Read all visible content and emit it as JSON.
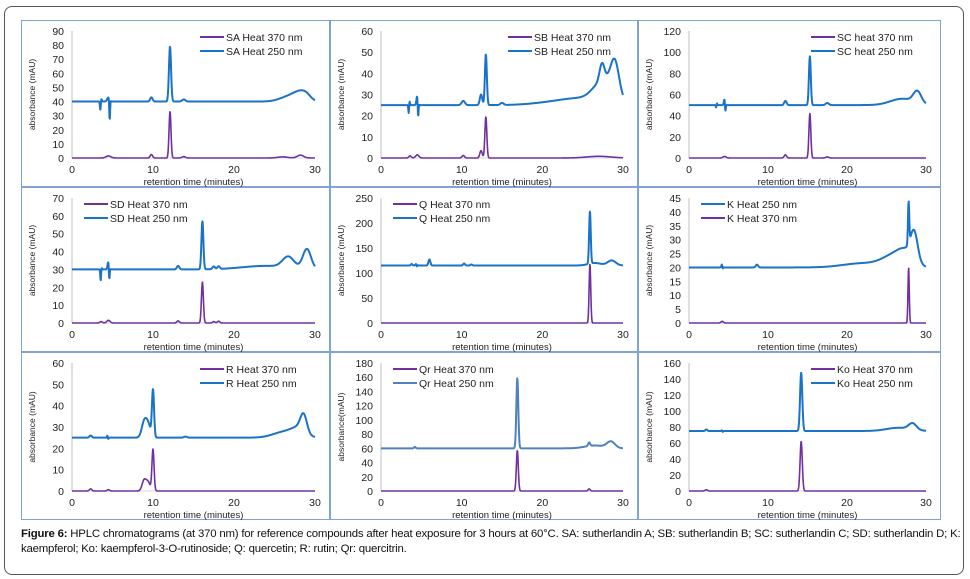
{
  "caption": {
    "label": "Figure 6:",
    "text": " HPLC chromatograms (at 370 nm) for reference compounds after heat exposure for 3 hours at 60°C. SA: sutherlandin A; SB: sutherlandin B; SC: sutherlandin C; SD: sutherlandin D; K: kaempferol; Ko: kaempferol-3-O-rutinoside; Q: quercetin; R: rutin; Qr: quercitrin."
  },
  "colors": {
    "nm370": "#7030a0",
    "nm250": "#1a73c8",
    "nm250_qr": "#4f81bd",
    "axis": "#bfbfbf",
    "text": "#222222",
    "border": "#7fa3d3"
  },
  "chart_data": [
    {
      "id": "SA",
      "type": "line",
      "xlabel": "retention time  (minutes)",
      "ylabel": "absorbance (mAU)",
      "xlim": [
        0,
        30
      ],
      "ylim": [
        0,
        90
      ],
      "xticks": [
        0,
        10,
        20,
        30
      ],
      "yticks": [
        0,
        10,
        20,
        30,
        40,
        50,
        60,
        70,
        80,
        90
      ],
      "legend_position": "top-right",
      "grid": false,
      "series": [
        {
          "name": "SA Heat 370 nm",
          "color_key": "nm370",
          "baseline": 0,
          "peaks": [
            [
              4.5,
              1.5,
              0.3
            ],
            [
              9.8,
              2.5,
              0.15
            ],
            [
              12.1,
              33,
              0.12
            ],
            [
              13.8,
              1,
              0.2
            ],
            [
              26,
              0.8,
              0.6
            ],
            [
              28.2,
              2,
              0.4
            ]
          ]
        },
        {
          "name": "SA Heat 250 nm",
          "color_key": "nm250",
          "baseline": 40,
          "peaks": [
            [
              3.6,
              2,
              0.08
            ],
            [
              3.5,
              -7,
              0.05
            ],
            [
              4.5,
              3,
              0.15
            ],
            [
              4.65,
              -15,
              0.05
            ],
            [
              9.8,
              3,
              0.15
            ],
            [
              12.1,
              39,
              0.13
            ],
            [
              13.8,
              1.5,
              0.2
            ],
            [
              27,
              4,
              1.2
            ],
            [
              28.3,
              5,
              0.8
            ],
            [
              29,
              2,
              0.5
            ]
          ]
        }
      ]
    },
    {
      "id": "SB",
      "type": "line",
      "xlabel": "retention time  (minutes)",
      "ylabel": "absorbance (mAU)",
      "xlim": [
        0,
        30
      ],
      "ylim": [
        0,
        60
      ],
      "xticks": [
        0,
        10,
        20,
        30
      ],
      "yticks": [
        0,
        10,
        20,
        30,
        40,
        50,
        60
      ],
      "legend_position": "top-right",
      "grid": false,
      "series": [
        {
          "name": "SB Heat 370 nm",
          "color_key": "nm370",
          "baseline": 0,
          "peaks": [
            [
              3.6,
              1,
              0.15
            ],
            [
              4.5,
              1.5,
              0.2
            ],
            [
              10.2,
              1.2,
              0.15
            ],
            [
              12.4,
              3.5,
              0.15
            ],
            [
              13,
              19.5,
              0.12
            ],
            [
              27,
              0.8,
              1.5
            ]
          ]
        },
        {
          "name": "SB Heat 250 nm",
          "color_key": "nm250",
          "baseline": 25,
          "peaks": [
            [
              3.5,
              3.5,
              0.06
            ],
            [
              3.45,
              -6,
              0.05
            ],
            [
              4.5,
              4.5,
              0.1
            ],
            [
              4.6,
              -8,
              0.05
            ],
            [
              10.2,
              2,
              0.2
            ],
            [
              12.4,
              5,
              0.15
            ],
            [
              13,
              24,
              0.12
            ],
            [
              15,
              1,
              0.2
            ],
            [
              21,
              1,
              2.5
            ],
            [
              25,
              3,
              2.5
            ],
            [
              27.4,
              8,
              0.3
            ],
            [
              27,
              6,
              1
            ],
            [
              29,
              13,
              0.5
            ],
            [
              28.5,
              8,
              1
            ]
          ]
        }
      ]
    },
    {
      "id": "SC",
      "type": "line",
      "xlabel": "retention time  (minutes)",
      "ylabel": "absorbance (mAU)",
      "xlim": [
        0,
        30
      ],
      "ylim": [
        0,
        120
      ],
      "xticks": [
        0,
        10,
        20,
        30
      ],
      "yticks": [
        0,
        20,
        40,
        60,
        80,
        100,
        120
      ],
      "legend_position": "top-right",
      "grid": false,
      "series": [
        {
          "name": "SC heat 370 nm",
          "color_key": "nm370",
          "baseline": 0,
          "peaks": [
            [
              4.5,
              1.5,
              0.2
            ],
            [
              12.2,
              3,
              0.15
            ],
            [
              15.3,
              42,
              0.12
            ],
            [
              17.5,
              1,
              0.2
            ]
          ]
        },
        {
          "name": "SC heat 250 nm",
          "color_key": "nm250",
          "baseline": 50,
          "peaks": [
            [
              3.5,
              3,
              0.06
            ],
            [
              3.45,
              -4,
              0.05
            ],
            [
              4.5,
              6,
              0.08
            ],
            [
              4.6,
              -8,
              0.05
            ],
            [
              12.2,
              4,
              0.15
            ],
            [
              15.3,
              46,
              0.12
            ],
            [
              17.5,
              2,
              0.2
            ],
            [
              27,
              6,
              1.5
            ],
            [
              28.9,
              11,
              0.5
            ]
          ]
        }
      ]
    },
    {
      "id": "SD",
      "type": "line",
      "xlabel": "retention time  (minutes)",
      "ylabel": "absorbance (mAU)",
      "xlim": [
        0,
        30
      ],
      "ylim": [
        0,
        70
      ],
      "xticks": [
        0,
        10,
        20,
        30
      ],
      "yticks": [
        0,
        10,
        20,
        30,
        40,
        50,
        60,
        70
      ],
      "legend_position": "top-left",
      "grid": false,
      "series": [
        {
          "name": "SD Heat 370 nm",
          "color_key": "nm370",
          "baseline": 0,
          "peaks": [
            [
              3.6,
              0.8,
              0.15
            ],
            [
              4.5,
              1.5,
              0.2
            ],
            [
              13.1,
              1.2,
              0.15
            ],
            [
              16.1,
              23,
              0.12
            ],
            [
              17.5,
              0.8,
              0.15
            ],
            [
              18.1,
              1,
              0.15
            ]
          ]
        },
        {
          "name": "SD Heat 250 nm",
          "color_key": "nm250",
          "baseline": 30,
          "peaks": [
            [
              3.6,
              2.5,
              0.06
            ],
            [
              3.55,
              -8,
              0.05
            ],
            [
              4.5,
              4.5,
              0.1
            ],
            [
              4.6,
              -8,
              0.05
            ],
            [
              13.1,
              2,
              0.15
            ],
            [
              16.1,
              27,
              0.12
            ],
            [
              17.5,
              1.5,
              0.15
            ],
            [
              18.1,
              1.5,
              0.15
            ],
            [
              26.7,
              6,
              0.7
            ],
            [
              29,
              11,
              0.5
            ],
            [
              24,
              2,
              3
            ]
          ]
        }
      ]
    },
    {
      "id": "Q",
      "type": "line",
      "xlabel": "retention time  (minutes)",
      "ylabel": "absorbance (mAU)",
      "xlim": [
        0,
        30
      ],
      "ylim": [
        0,
        250
      ],
      "xticks": [
        0,
        10,
        20,
        30
      ],
      "yticks": [
        0,
        50,
        100,
        150,
        200,
        250
      ],
      "legend_position": "top-left",
      "grid": false,
      "series": [
        {
          "name": "Q Heat 370 nm",
          "color_key": "nm370",
          "baseline": 0,
          "peaks": [
            [
              25.9,
              118,
              0.1
            ]
          ]
        },
        {
          "name": "Q Heat 250 nm",
          "color_key": "nm250",
          "baseline": 115,
          "peaks": [
            [
              3.8,
              3,
              0.1
            ],
            [
              4.4,
              4,
              0.1
            ],
            [
              4.45,
              -5,
              0.05
            ],
            [
              6,
              12,
              0.12
            ],
            [
              10.3,
              4,
              0.12
            ],
            [
              11.2,
              2,
              0.12
            ],
            [
              25.9,
              105,
              0.1
            ],
            [
              26.5,
              5,
              0.8
            ],
            [
              28.6,
              10,
              0.5
            ]
          ]
        }
      ]
    },
    {
      "id": "K",
      "type": "line",
      "xlabel": "retention time  (minutes)",
      "ylabel": "absorbance (mAU)",
      "xlim": [
        0,
        30
      ],
      "ylim": [
        0,
        45
      ],
      "xticks": [
        0,
        10,
        20,
        30
      ],
      "yticks": [
        0,
        5,
        10,
        15,
        20,
        25,
        30,
        35,
        40,
        45
      ],
      "legend_position": "top-left",
      "grid": false,
      "series": [
        {
          "name": "K Heat 250 nm",
          "color_key": "nm250",
          "baseline": 20,
          "peaks": [
            [
              4.2,
              1.5,
              0.08
            ],
            [
              4.25,
              -1.5,
              0.05
            ],
            [
              8.6,
              1,
              0.15
            ],
            [
              22,
              1.5,
              2.5
            ],
            [
              26,
              4,
              1.5
            ],
            [
              27.8,
              15,
              0.08
            ],
            [
              28.5,
              10,
              0.45
            ],
            [
              27.5,
              4,
              1
            ]
          ]
        },
        {
          "name": "K Heat 370 nm",
          "color_key": "nm370",
          "baseline": 0,
          "peaks": [
            [
              4.2,
              0.6,
              0.15
            ],
            [
              27.8,
              20,
              0.08
            ]
          ]
        }
      ]
    },
    {
      "id": "R",
      "type": "line",
      "xlabel": "retention time  (minutes)",
      "ylabel": "absorbance (mAU)",
      "xlim": [
        0,
        30
      ],
      "ylim": [
        0,
        60
      ],
      "xticks": [
        0,
        10,
        20,
        30
      ],
      "yticks": [
        0,
        10,
        20,
        30,
        40,
        50,
        60
      ],
      "legend_position": "top-right",
      "grid": false,
      "series": [
        {
          "name": "R Heat 370 nm",
          "color_key": "nm370",
          "baseline": 0,
          "peaks": [
            [
              2.3,
              1,
              0.15
            ],
            [
              4.5,
              0.6,
              0.15
            ],
            [
              8.9,
              5,
              0.25
            ],
            [
              9.4,
              4,
              0.25
            ],
            [
              10,
              19.5,
              0.13
            ]
          ]
        },
        {
          "name": "R Heat 250 nm",
          "color_key": "nm250",
          "baseline": 25,
          "peaks": [
            [
              2.3,
              1,
              0.15
            ],
            [
              4.4,
              1.5,
              0.06
            ],
            [
              4.45,
              -1.5,
              0.05
            ],
            [
              8.9,
              7,
              0.3
            ],
            [
              9.4,
              6,
              0.3
            ],
            [
              10,
              22,
              0.13
            ],
            [
              14,
              0.5,
              0.2
            ],
            [
              26.5,
              3,
              1.5
            ],
            [
              28.6,
              8,
              0.4
            ],
            [
              28,
              3,
              0.8
            ]
          ]
        }
      ]
    },
    {
      "id": "Qr",
      "type": "line",
      "xlabel": "retention time  (minutes)",
      "ylabel": "absorbance(mAU)",
      "xlim": [
        0,
        30
      ],
      "ylim": [
        0,
        180
      ],
      "xticks": [
        0,
        10,
        20,
        30
      ],
      "yticks": [
        0,
        20,
        40,
        60,
        80,
        100,
        120,
        140,
        160,
        180
      ],
      "legend_position": "top-left",
      "grid": false,
      "series": [
        {
          "name": "Qr Heat 370 nm",
          "color_key": "nm370",
          "baseline": 0,
          "peaks": [
            [
              16.9,
              57,
              0.12
            ],
            [
              25.8,
              3,
              0.12
            ]
          ]
        },
        {
          "name": "Qr Heat 250 nm",
          "color_key": "nm250_qr",
          "baseline": 60,
          "peaks": [
            [
              4.2,
              2,
              0.1
            ],
            [
              16.9,
              99,
              0.12
            ],
            [
              25.8,
              5,
              0.12
            ],
            [
              26.5,
              4,
              1.2
            ],
            [
              28.5,
              9,
              0.5
            ]
          ]
        }
      ]
    },
    {
      "id": "Ko",
      "type": "line",
      "xlabel": "retention time  (minutes)",
      "ylabel": "absorbance (mAU)",
      "xlim": [
        0,
        30
      ],
      "ylim": [
        0,
        160
      ],
      "xticks": [
        0,
        10,
        20,
        30
      ],
      "yticks": [
        0,
        20,
        40,
        60,
        80,
        100,
        120,
        140,
        160
      ],
      "legend_position": "top-right",
      "grid": false,
      "series": [
        {
          "name": "Ko Heat 370 nm",
          "color_key": "nm370",
          "baseline": 0,
          "peaks": [
            [
              2.2,
              1.5,
              0.15
            ],
            [
              14.2,
              62,
              0.14
            ]
          ]
        },
        {
          "name": "Ko Heat 250 nm",
          "color_key": "nm250",
          "baseline": 75,
          "peaks": [
            [
              2.2,
              2,
              0.12
            ],
            [
              4.2,
              1.5,
              0.06
            ],
            [
              4.25,
              -2,
              0.05
            ],
            [
              14.2,
              73,
              0.14
            ],
            [
              26.5,
              4,
              1.5
            ],
            [
              28.3,
              8,
              0.5
            ]
          ]
        }
      ]
    }
  ]
}
